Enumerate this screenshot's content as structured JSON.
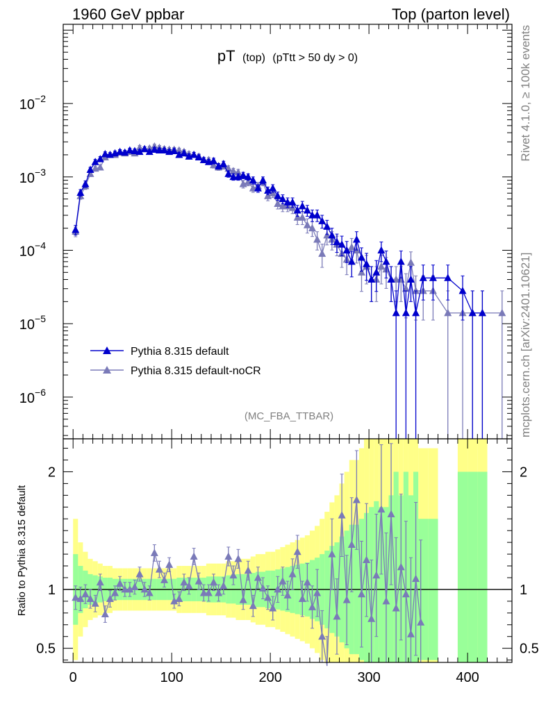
{
  "header": {
    "left": "1960 GeV ppbar",
    "right": "Top (parton level)"
  },
  "side_labels": {
    "rivet": "Rivet 4.1.0, ≥ 100k events",
    "mcplots": "mcplots.cern.ch [arXiv:2401.10621]"
  },
  "colors": {
    "default": "#0000cc",
    "nocr": "#7a7ab8",
    "band_green": "#99ff99",
    "band_yellow": "#ffff88"
  },
  "chart_data": [
    {
      "type": "line",
      "panel": "main",
      "title_main": "pT",
      "title_sub": "(top)",
      "title_extra": "(pTtt > 50 dy > 0)",
      "watermark": "(MC_FBA_TTBAR)",
      "xlabel": "",
      "ylabel": "",
      "yscale": "log",
      "xlim": [
        -10,
        445
      ],
      "ylim": [
        2.7e-07,
        0.12
      ],
      "yticks": [
        {
          "value": 1e-06,
          "base": "10",
          "exp": "−6"
        },
        {
          "value": 1e-05,
          "base": "10",
          "exp": "−5"
        },
        {
          "value": 0.0001,
          "base": "10",
          "exp": "−4"
        },
        {
          "value": 0.001,
          "base": "10",
          "exp": "−3"
        },
        {
          "value": 0.01,
          "base": "10",
          "exp": "−2"
        }
      ],
      "legend": [
        "Pythia 8.315 default",
        "Pythia 8.315 default-noCR"
      ],
      "legend_position": "lower-left",
      "series": [
        {
          "name": "Pythia 8.315 default",
          "x": [
            2.5,
            7.5,
            12.5,
            17.5,
            22.5,
            27.5,
            32.5,
            37.5,
            42.5,
            47.5,
            52.5,
            57.5,
            62.5,
            67.5,
            72.5,
            77.5,
            82.5,
            87.5,
            92.5,
            97.5,
            102.5,
            107.5,
            112.5,
            117.5,
            122.5,
            127.5,
            132.5,
            137.5,
            142.5,
            147.5,
            152.5,
            157.5,
            162.5,
            167.5,
            172.5,
            177.5,
            182.5,
            187.5,
            192.5,
            197.5,
            202.5,
            207.5,
            212.5,
            217.5,
            222.5,
            227.5,
            232.5,
            237.5,
            242.5,
            247.5,
            252.5,
            257.5,
            262.5,
            267.5,
            272.5,
            277.5,
            282.5,
            287.5,
            292.5,
            297.5,
            302.5,
            307.5,
            312.5,
            317.5,
            322.5,
            327.5,
            332.5,
            337.5,
            342.5,
            347.5,
            355,
            365,
            380,
            395,
            405,
            415
          ],
          "values": [
            0.00019,
            0.00061,
            0.0008,
            0.00125,
            0.0016,
            0.00175,
            0.00205,
            0.002,
            0.0021,
            0.0022,
            0.00215,
            0.0023,
            0.00225,
            0.0022,
            0.0024,
            0.0022,
            0.00235,
            0.0023,
            0.0023,
            0.0022,
            0.00225,
            0.002,
            0.0021,
            0.0019,
            0.002,
            0.00185,
            0.0017,
            0.0016,
            0.00165,
            0.0014,
            0.0015,
            0.0011,
            0.001,
            0.001,
            0.00105,
            0.001,
            0.0009,
            0.0007,
            0.0009,
            0.00065,
            0.0007,
            0.00055,
            0.0005,
            0.00045,
            0.00045,
            0.00035,
            0.0004,
            0.00035,
            0.0003,
            0.0003,
            0.00025,
            0.00021,
            0.00016,
            0.00013,
            0.00012,
            0.0001,
            7e-05,
            0.00014,
            8e-05,
            6.5e-05,
            4e-05,
            5e-05,
            0.0001,
            7e-05,
            4e-05,
            1.4e-05,
            7e-05,
            1.4e-05,
            4e-05,
            1.4e-05,
            4.2e-05,
            4.2e-05,
            4.2e-05,
            2.8e-05,
            1.4e-05,
            1.4e-05
          ],
          "errors": [
            0.15,
            0.1,
            0.1,
            0.08,
            0.08,
            0.08,
            0.07,
            0.07,
            0.07,
            0.07,
            0.07,
            0.07,
            0.07,
            0.07,
            0.07,
            0.07,
            0.07,
            0.07,
            0.07,
            0.07,
            0.08,
            0.08,
            0.08,
            0.08,
            0.08,
            0.08,
            0.08,
            0.08,
            0.09,
            0.09,
            0.09,
            0.1,
            0.1,
            0.1,
            0.1,
            0.1,
            0.11,
            0.12,
            0.11,
            0.12,
            0.12,
            0.13,
            0.14,
            0.15,
            0.15,
            0.17,
            0.16,
            0.17,
            0.18,
            0.18,
            0.2,
            0.22,
            0.25,
            0.28,
            0.3,
            0.32,
            0.38,
            0.28,
            0.35,
            0.4,
            0.5,
            0.45,
            0.3,
            0.4,
            0.5,
            1.0,
            0.4,
            1.0,
            0.5,
            1.0,
            0.5,
            0.5,
            0.5,
            0.6,
            1.0,
            1.0
          ]
        },
        {
          "name": "Pythia 8.315 default-noCR",
          "x": [
            2.5,
            7.5,
            12.5,
            17.5,
            22.5,
            27.5,
            32.5,
            37.5,
            42.5,
            47.5,
            52.5,
            57.5,
            62.5,
            67.5,
            72.5,
            77.5,
            82.5,
            87.5,
            92.5,
            97.5,
            102.5,
            107.5,
            112.5,
            117.5,
            122.5,
            127.5,
            132.5,
            137.5,
            142.5,
            147.5,
            152.5,
            157.5,
            162.5,
            167.5,
            172.5,
            177.5,
            182.5,
            187.5,
            192.5,
            197.5,
            202.5,
            207.5,
            212.5,
            217.5,
            222.5,
            227.5,
            232.5,
            237.5,
            242.5,
            247.5,
            252.5,
            257.5,
            262.5,
            267.5,
            272.5,
            277.5,
            282.5,
            287.5,
            292.5,
            297.5,
            302.5,
            307.5,
            312.5,
            317.5,
            322.5,
            327.5,
            332.5,
            337.5,
            342.5,
            347.5,
            355,
            365,
            380,
            395,
            405,
            415,
            435
          ],
          "values": [
            0.00018,
            0.00055,
            0.00075,
            0.0011,
            0.0013,
            0.00135,
            0.00185,
            0.002,
            0.002,
            0.00215,
            0.0021,
            0.0022,
            0.0021,
            0.0025,
            0.0024,
            0.00245,
            0.0026,
            0.0025,
            0.0024,
            0.00235,
            0.00235,
            0.0023,
            0.0022,
            0.00205,
            0.002,
            0.0019,
            0.0017,
            0.0017,
            0.00145,
            0.00135,
            0.0014,
            0.0013,
            0.0012,
            0.00115,
            0.0008,
            0.00085,
            0.0007,
            0.00075,
            0.00085,
            0.00055,
            0.0006,
            0.00043,
            0.0004,
            0.0004,
            0.00038,
            0.00028,
            0.00028,
            0.00022,
            0.0002,
            0.00014,
            9e-05,
            0.00016,
            0.00014,
            0.00012,
            9e-05,
            7.5e-05,
            0.00011,
            0.0001,
            5e-05,
            6e-05,
            4e-05,
            4e-05,
            6e-05,
            5.5e-05,
            4e-05,
            4e-05,
            4e-05,
            3e-05,
            6.8e-05,
            2.8e-05,
            2.8e-05,
            2.8e-05,
            1.4e-05,
            1.4e-05,
            1.4e-05,
            1.4e-05,
            1.4e-05
          ],
          "errors": [
            0.15,
            0.1,
            0.1,
            0.08,
            0.08,
            0.08,
            0.07,
            0.07,
            0.07,
            0.07,
            0.07,
            0.07,
            0.07,
            0.07,
            0.07,
            0.07,
            0.07,
            0.07,
            0.07,
            0.07,
            0.07,
            0.07,
            0.07,
            0.08,
            0.08,
            0.08,
            0.08,
            0.08,
            0.09,
            0.09,
            0.09,
            0.09,
            0.09,
            0.1,
            0.12,
            0.11,
            0.12,
            0.12,
            0.11,
            0.14,
            0.13,
            0.15,
            0.16,
            0.16,
            0.17,
            0.2,
            0.2,
            0.22,
            0.23,
            0.28,
            0.35,
            0.26,
            0.28,
            0.3,
            0.35,
            0.38,
            0.32,
            0.33,
            0.45,
            0.42,
            0.5,
            0.5,
            0.42,
            0.45,
            0.5,
            0.5,
            0.5,
            0.6,
            0.4,
            0.6,
            0.6,
            0.6,
            1.0,
            1.0,
            1.0,
            1.0,
            1.0
          ]
        }
      ]
    },
    {
      "type": "line",
      "panel": "ratio",
      "ylabel": "Ratio to Pythia 8.315 default",
      "xlabel": "",
      "xlim": [
        -10,
        445
      ],
      "ylim": [
        0.38,
        2.28
      ],
      "xticks": [
        0,
        100,
        200,
        300,
        400
      ],
      "yticks": [
        0.5,
        1,
        2
      ],
      "reference_line": 1,
      "bands": {
        "bin_edges": [
          0,
          5,
          10,
          15,
          20,
          25,
          30,
          35,
          40,
          45,
          50,
          55,
          60,
          65,
          70,
          75,
          80,
          85,
          90,
          95,
          100,
          105,
          110,
          115,
          120,
          125,
          130,
          135,
          140,
          145,
          150,
          155,
          160,
          165,
          170,
          175,
          180,
          185,
          190,
          195,
          200,
          205,
          210,
          215,
          220,
          225,
          230,
          235,
          240,
          245,
          250,
          255,
          260,
          265,
          270,
          275,
          280,
          285,
          290,
          295,
          300,
          305,
          310,
          315,
          320,
          325,
          330,
          335,
          340,
          345,
          350,
          360,
          370,
          390,
          400,
          410,
          420
        ],
        "green": [
          0.3,
          0.2,
          0.16,
          0.13,
          0.12,
          0.11,
          0.1,
          0.1,
          0.09,
          0.09,
          0.09,
          0.09,
          0.09,
          0.09,
          0.09,
          0.09,
          0.09,
          0.09,
          0.09,
          0.09,
          0.09,
          0.1,
          0.1,
          0.1,
          0.1,
          0.1,
          0.1,
          0.11,
          0.11,
          0.11,
          0.11,
          0.12,
          0.12,
          0.13,
          0.13,
          0.13,
          0.14,
          0.15,
          0.15,
          0.16,
          0.16,
          0.17,
          0.18,
          0.19,
          0.2,
          0.21,
          0.22,
          0.23,
          0.25,
          0.27,
          0.3,
          0.33,
          0.37,
          0.4,
          0.45,
          0.5,
          0.55,
          0.55,
          0.6,
          0.65,
          0.7,
          0.75,
          0.7,
          0.7,
          0.8,
          1.0,
          0.8,
          1.0,
          0.8,
          1.0,
          0.6,
          0.6,
          null,
          1.0,
          1.0,
          1.0
        ],
        "yellow": [
          0.6,
          0.4,
          0.32,
          0.26,
          0.24,
          0.22,
          0.2,
          0.2,
          0.18,
          0.18,
          0.18,
          0.18,
          0.18,
          0.18,
          0.18,
          0.18,
          0.18,
          0.18,
          0.18,
          0.18,
          0.18,
          0.2,
          0.2,
          0.2,
          0.2,
          0.2,
          0.2,
          0.22,
          0.22,
          0.22,
          0.22,
          0.24,
          0.24,
          0.26,
          0.26,
          0.26,
          0.28,
          0.3,
          0.3,
          0.32,
          0.32,
          0.34,
          0.36,
          0.38,
          0.4,
          0.42,
          0.44,
          0.46,
          0.5,
          0.54,
          0.6,
          0.66,
          0.74,
          0.8,
          0.9,
          1.0,
          1.1,
          1.1,
          1.2,
          1.3,
          1.4,
          1.5,
          1.4,
          1.4,
          1.6,
          2.0,
          1.6,
          2.0,
          1.6,
          2.0,
          1.2,
          1.2,
          null,
          2.0,
          2.0,
          2.0
        ]
      },
      "series": [
        {
          "name": "Pythia 8.315 default-noCR / Pythia 8.315 default",
          "x": [
            2.5,
            7.5,
            12.5,
            17.5,
            22.5,
            27.5,
            32.5,
            37.5,
            42.5,
            47.5,
            52.5,
            57.5,
            62.5,
            67.5,
            72.5,
            77.5,
            82.5,
            87.5,
            92.5,
            97.5,
            102.5,
            107.5,
            112.5,
            117.5,
            122.5,
            127.5,
            132.5,
            137.5,
            142.5,
            147.5,
            152.5,
            157.5,
            162.5,
            167.5,
            172.5,
            177.5,
            182.5,
            187.5,
            192.5,
            197.5,
            202.5,
            207.5,
            212.5,
            217.5,
            222.5,
            227.5,
            232.5,
            237.5,
            242.5,
            247.5,
            252.5,
            257.5,
            262.5,
            267.5,
            272.5,
            277.5,
            282.5,
            287.5,
            292.5,
            297.5,
            302.5,
            307.5,
            312.5,
            317.5,
            322.5,
            327.5,
            332.5,
            337.5,
            342.5,
            347.5,
            352.5
          ],
          "values": [
            0.93,
            0.92,
            0.96,
            0.92,
            0.88,
            1.06,
            0.79,
            0.92,
            0.97,
            1.05,
            1.0,
            1.0,
            1.02,
            1.13,
            1.0,
            0.97,
            1.31,
            1.17,
            1.08,
            1.21,
            0.9,
            0.92,
            1.06,
            1.03,
            1.28,
            1.07,
            0.97,
            0.97,
            1.06,
            0.97,
            1.03,
            1.28,
            1.12,
            1.26,
            0.91,
            1.16,
            0.86,
            1.1,
            1.01,
            0.93,
            0.84,
            1.0,
            1.07,
            0.95,
            1.13,
            1.32,
            0.92,
            1.06,
            0.85,
            0.97,
            0.6,
            0.35,
            1.3,
            0.77,
            1.63,
            0.91,
            1.38,
            1.76,
            0.96,
            1.25,
            0.75,
            1.12,
            1.68,
            0.9,
            1.64,
            0.84,
            1.19,
            0.96,
            0.62,
            1.09,
            0.72
          ],
          "errors": [
            0.1,
            0.1,
            0.08,
            0.08,
            0.07,
            0.07,
            0.07,
            0.07,
            0.06,
            0.06,
            0.06,
            0.06,
            0.06,
            0.06,
            0.06,
            0.06,
            0.07,
            0.07,
            0.06,
            0.06,
            0.06,
            0.06,
            0.07,
            0.07,
            0.07,
            0.07,
            0.07,
            0.07,
            0.07,
            0.07,
            0.07,
            0.08,
            0.08,
            0.08,
            0.08,
            0.08,
            0.09,
            0.09,
            0.09,
            0.1,
            0.1,
            0.11,
            0.12,
            0.12,
            0.13,
            0.14,
            0.15,
            0.16,
            0.18,
            0.2,
            0.22,
            0.25,
            0.3,
            0.32,
            0.35,
            0.38,
            0.4,
            0.42,
            0.45,
            0.48,
            0.5,
            0.52,
            0.55,
            0.58,
            0.6,
            0.6,
            0.62,
            0.62,
            0.65,
            0.65,
            0.7
          ]
        }
      ]
    }
  ]
}
